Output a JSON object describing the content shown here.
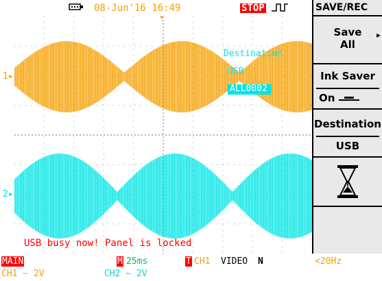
{
  "colors": {
    "ch1": "#f5a000",
    "ch2": "#00e5e5",
    "stop_bg": "#ff0000",
    "busy_text": "#ff0000",
    "panel_bg": "#e9e9e9",
    "grid_dot": "#9a9a9a"
  },
  "header": {
    "storage_icon": "usb-drive-icon",
    "datetime": "08-Jun'16 16:49",
    "run_state": "STOP",
    "trigger_icon": "rising-edge-trigger-icon"
  },
  "channel_markers": {
    "ch1": "1",
    "ch2": "2"
  },
  "overlay": {
    "destination_label": "Destination",
    "destination_value": "USB",
    "file_name": "ALL0002"
  },
  "status_message": "USB busy now! Panel is locked",
  "softmenu": {
    "title": "SAVE/REC",
    "items": [
      {
        "line1": "Save",
        "line2": "All",
        "arrow": "▸"
      },
      {
        "line1": "Ink Saver",
        "line2": "On"
      },
      {
        "line1": "Destination",
        "line2": "USB"
      },
      {
        "icon": "hourglass-icon"
      },
      {
        "line1": ""
      }
    ]
  },
  "footer": {
    "mode": "MAIN",
    "timebase_marker": "M",
    "timebase": "25ms",
    "trigger_marker": "T",
    "trigger_source": "CH1",
    "trigger_type": "VIDEO",
    "trigger_polarity": "N",
    "bw_limit": "<20Hz",
    "ch1_scale": "CH1 ∼ 2V",
    "ch2_scale": "CH2 ∼ 2V"
  }
}
